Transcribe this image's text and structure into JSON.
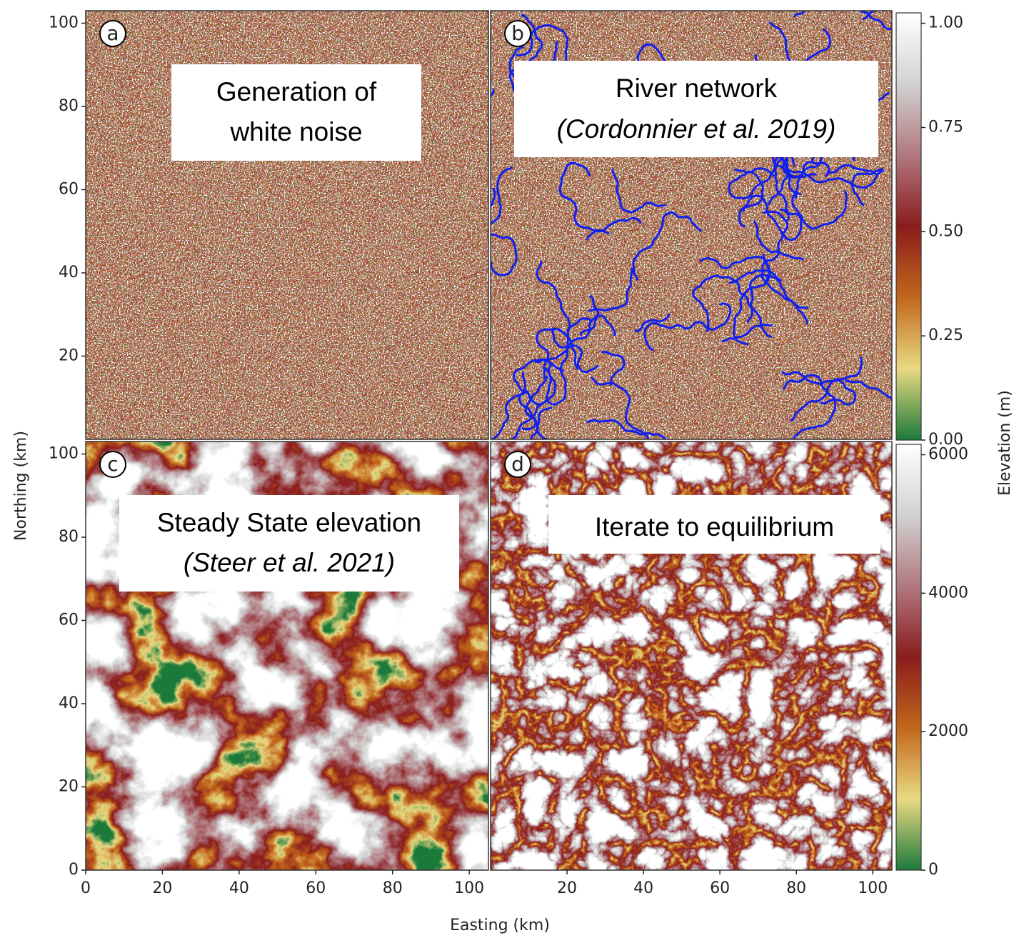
{
  "chart_data": {
    "type": "heatmap-grid",
    "x_label": "Easting (km)",
    "y_label": "Northing (km)",
    "xlim": [
      0,
      105
    ],
    "ylim": [
      0,
      103
    ],
    "colormap": [
      "#1b7a3a",
      "#e9d982",
      "#c2671c",
      "#8a1c1c",
      "#b0787e",
      "#d2d2d2",
      "#ffffff"
    ],
    "panels": [
      {
        "label": "a",
        "annotation": [
          "Generation of",
          "white noise"
        ],
        "yticks": [
          20,
          40,
          60,
          80,
          100
        ],
        "xticks": []
      },
      {
        "label": "b",
        "annotation": [
          "River network",
          "(Cordonnier et al. 2019)"
        ],
        "yticks": [],
        "xticks": []
      },
      {
        "label": "c",
        "annotation": [
          "Steady State elevation",
          "(Steer et al. 2021)"
        ],
        "yticks": [
          0,
          20,
          40,
          60,
          80,
          100
        ],
        "xticks": [
          0,
          20,
          40,
          60,
          80,
          100
        ]
      },
      {
        "label": "d",
        "annotation": [
          "Iterate to equilibrium"
        ],
        "yticks": [],
        "xticks": [
          20,
          40,
          60,
          80,
          100
        ]
      }
    ],
    "colorbars": [
      {
        "ylim": [
          0,
          1.025
        ],
        "ticks": [
          {
            "value": 0,
            "label": "0.00"
          },
          {
            "value": 0.25,
            "label": "0.25"
          },
          {
            "value": 0.5,
            "label": "0.50"
          },
          {
            "value": 0.75,
            "label": "0.75"
          },
          {
            "value": 1,
            "label": "1.00"
          }
        ]
      },
      {
        "label": "Elevation (m)",
        "ylim": [
          0,
          6150
        ],
        "ticks": [
          0,
          2000,
          4000,
          6000
        ]
      }
    ]
  }
}
